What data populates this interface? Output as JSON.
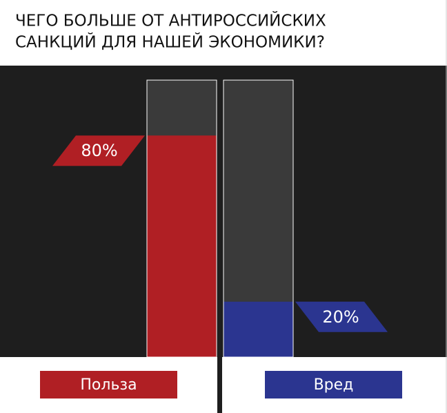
{
  "chart_data": {
    "type": "bar",
    "title": [
      "ЧЕГО БОЛЬШЕ ОТ АНТИРОССИЙСКИХ",
      "САНКЦИЙ ДЛЯ НАШЕЙ ЭКОНОМИКИ?"
    ],
    "categories": [
      "Польза",
      "Вред"
    ],
    "values": [
      80,
      20
    ],
    "value_labels": [
      "80%",
      "20%"
    ],
    "colors": [
      "#b01f24",
      "#2b3590"
    ],
    "ylim": [
      0,
      100
    ]
  }
}
